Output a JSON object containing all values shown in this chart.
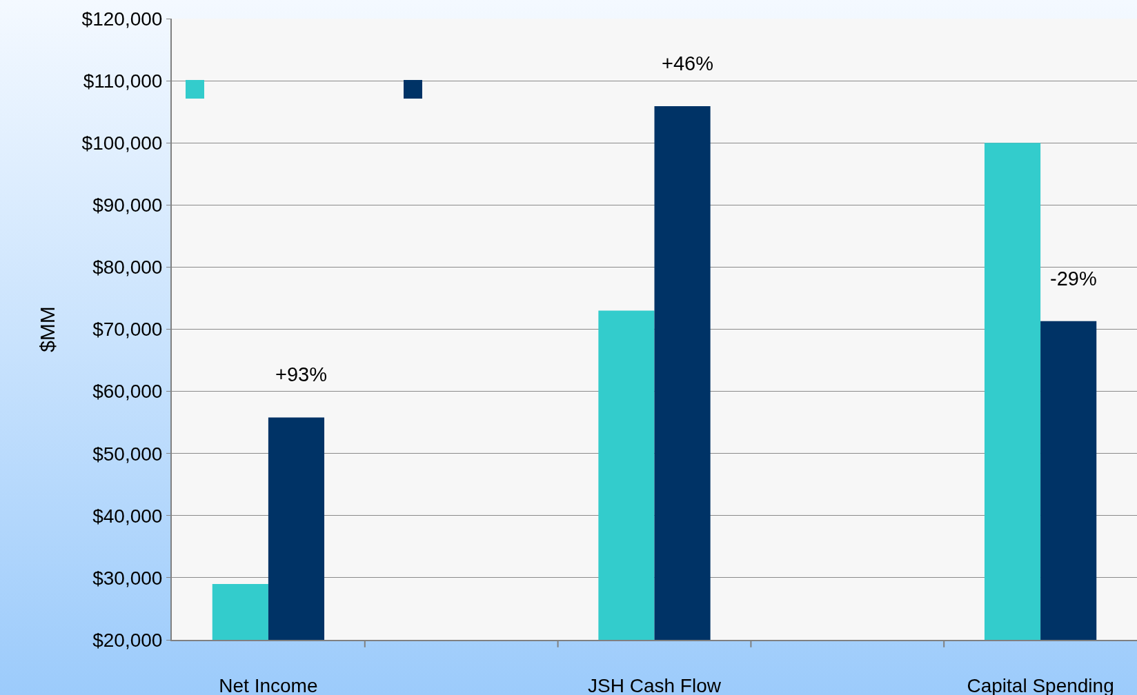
{
  "chart_data": {
    "type": "bar",
    "ylabel": "$MM",
    "categories": [
      "Net Income",
      null,
      "JSH Cash Flow",
      null,
      "Capital Spending"
    ],
    "series": [
      {
        "color": "#33cccc",
        "values": [
          29000,
          null,
          73000,
          null,
          100000
        ]
      },
      {
        "color": "#003366",
        "values": [
          55800,
          null,
          105900,
          null,
          71300
        ]
      }
    ],
    "ylim": [
      20000,
      120000
    ],
    "yticks": [
      {
        "value": 20000,
        "label": "$20,000"
      },
      {
        "value": 30000,
        "label": "$30,000"
      },
      {
        "value": 40000,
        "label": "$40,000"
      },
      {
        "value": 50000,
        "label": "$50,000"
      },
      {
        "value": 60000,
        "label": "$60,000"
      },
      {
        "value": 70000,
        "label": "$70,000"
      },
      {
        "value": 80000,
        "label": "$80,000"
      },
      {
        "value": 90000,
        "label": "$90,000"
      },
      {
        "value": 100000,
        "label": "$100,000"
      },
      {
        "value": 110000,
        "label": "$110,000"
      },
      {
        "value": 120000,
        "label": "$120,000"
      }
    ],
    "annotations": [
      "+93%",
      "+46%",
      "-29%"
    ],
    "grid": "y"
  }
}
